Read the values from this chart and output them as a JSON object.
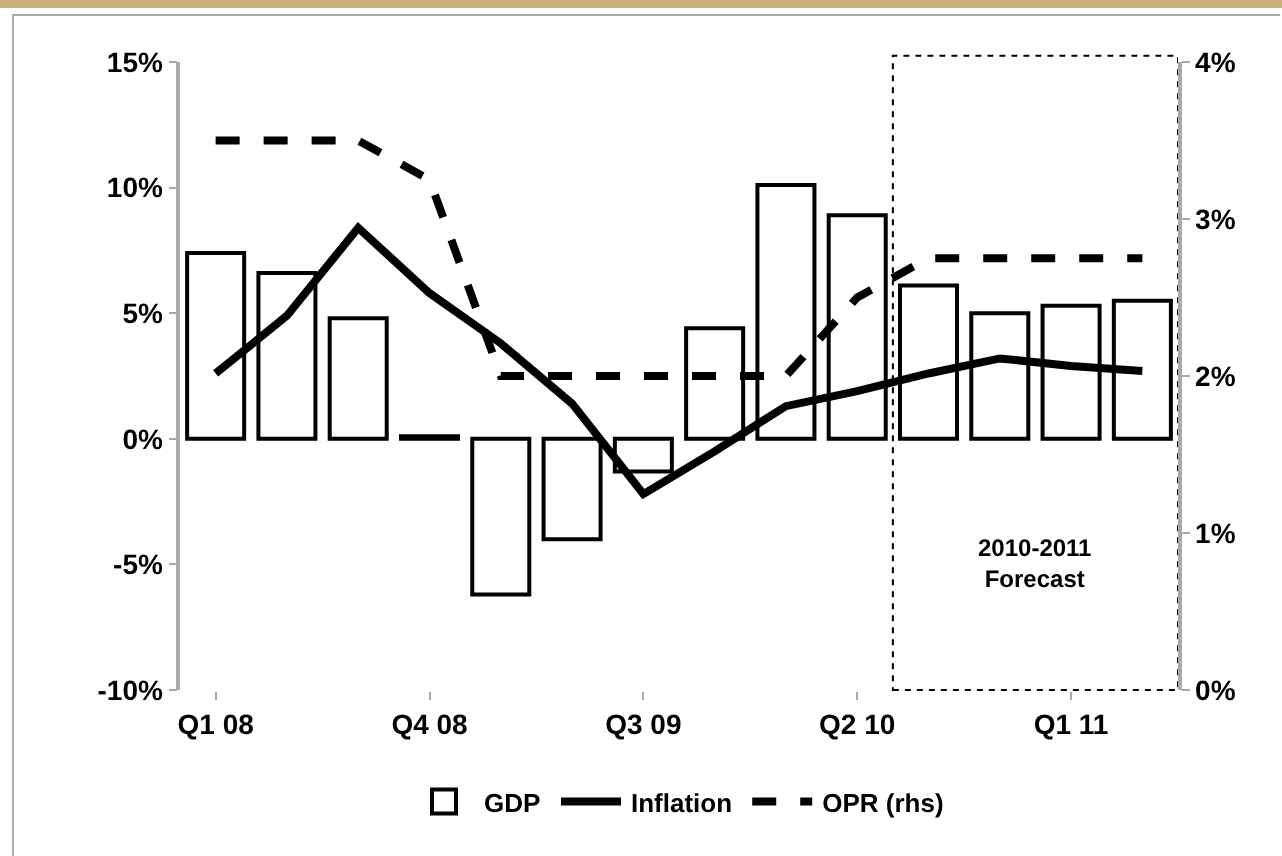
{
  "chart_data": {
    "type": "bar",
    "categories": [
      "Q1 08",
      null,
      null,
      "Q4 08",
      null,
      null,
      "Q3 09",
      null,
      null,
      "Q2 10",
      null,
      null,
      "Q1 11",
      null
    ],
    "series": [
      {
        "name": "GDP",
        "color": "#ffffff",
        "values": [
          7.4,
          6.6,
          4.8,
          0.1,
          -6.2,
          -4.0,
          -1.3,
          4.4,
          10.1,
          8.9,
          6.1,
          5.0,
          5.3,
          5.5
        ]
      },
      {
        "name": "Inflation",
        "type": "line",
        "color": "#000000",
        "line_style": "solid",
        "values": [
          2.6,
          4.9,
          8.4,
          5.8,
          3.8,
          1.4,
          -2.2,
          -0.5,
          1.3,
          1.9,
          2.6,
          3.2,
          2.9,
          2.7
        ]
      },
      {
        "name": "OPR (rhs)",
        "type": "line",
        "color": "#000000",
        "line_style": "dashed",
        "axis": "y2",
        "values": [
          3.5,
          3.5,
          3.5,
          3.25,
          2.0,
          2.0,
          2.0,
          2.0,
          2.0,
          2.5,
          2.75,
          2.75,
          2.75,
          2.75
        ]
      }
    ],
    "ylim": [
      -10,
      15
    ],
    "yticks": [
      {
        "value": -10,
        "label": "-10%"
      },
      {
        "value": -5,
        "label": "-5%"
      },
      {
        "value": 0,
        "label": "0%"
      },
      {
        "value": 5,
        "label": "5%"
      },
      {
        "value": 10,
        "label": "10%"
      },
      {
        "value": 15,
        "label": "15%"
      }
    ],
    "y2lim": [
      0,
      4
    ],
    "y2ticks": [
      {
        "value": 0,
        "label": "0%"
      },
      {
        "value": 1,
        "label": "1%"
      },
      {
        "value": 2,
        "label": "2%"
      },
      {
        "value": 3,
        "label": "3%"
      },
      {
        "value": 4,
        "label": "4%"
      }
    ],
    "annotations": [
      "2010-2011\nForecast"
    ],
    "grid": false,
    "legend": "bottom",
    "marker": "none"
  }
}
